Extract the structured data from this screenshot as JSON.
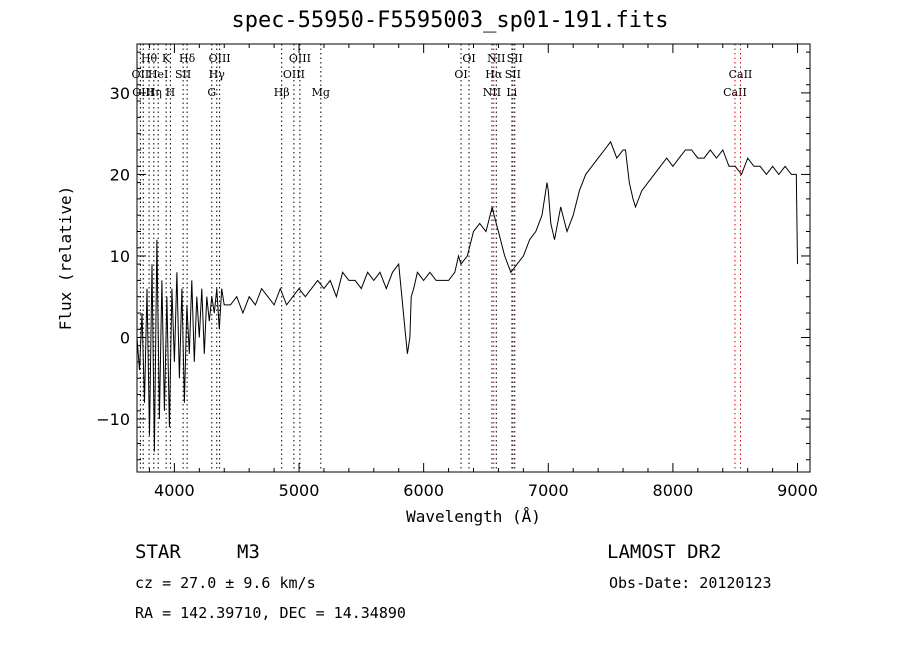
{
  "chart_data": {
    "type": "line",
    "title": "spec-55950-F5595003_sp01-191.fits",
    "xlabel": "Wavelength (Å)",
    "ylabel": "Flux (relative)",
    "xlim": [
      3700,
      9100
    ],
    "ylim": [
      -16.5,
      36
    ],
    "xticks": [
      4000,
      5000,
      6000,
      7000,
      8000,
      9000
    ],
    "yticks": [
      -10,
      0,
      10,
      20,
      30
    ],
    "series": [
      {
        "x": [
          3700,
          3720,
          3740,
          3760,
          3780,
          3800,
          3820,
          3840,
          3860,
          3880,
          3900,
          3920,
          3940,
          3960,
          3980,
          4000,
          4020,
          4040,
          4060,
          4080,
          4100,
          4120,
          4140,
          4160,
          4180,
          4200,
          4220,
          4240,
          4260,
          4280,
          4300,
          4320,
          4340,
          4360,
          4380,
          4400,
          4450,
          4500,
          4550,
          4600,
          4650,
          4700,
          4750,
          4800,
          4850,
          4900,
          4950,
          5000,
          5050,
          5100,
          5150,
          5200,
          5250,
          5300,
          5350,
          5400,
          5450,
          5500,
          5550,
          5600,
          5650,
          5700,
          5750,
          5800,
          5850,
          5870,
          5890,
          5900,
          5920,
          5950,
          6000,
          6050,
          6100,
          6150,
          6200,
          6250,
          6280,
          6300,
          6350,
          6400,
          6450,
          6500,
          6550,
          6565,
          6600,
          6650,
          6700,
          6750,
          6800,
          6850,
          6900,
          6950,
          6990,
          7000,
          7020,
          7050,
          7100,
          7150,
          7200,
          7250,
          7300,
          7350,
          7400,
          7450,
          7500,
          7550,
          7600,
          7620,
          7650,
          7680,
          7700,
          7750,
          7800,
          7850,
          7900,
          7950,
          8000,
          8050,
          8100,
          8150,
          8200,
          8250,
          8300,
          8350,
          8400,
          8450,
          8500,
          8550,
          8600,
          8650,
          8700,
          8750,
          8800,
          8850,
          8900,
          8950,
          8990,
          9000
        ],
        "y": [
          0,
          -4,
          3,
          -8,
          6,
          -12,
          9,
          -14,
          12,
          -10,
          7,
          -9,
          5,
          -11,
          6,
          -3,
          8,
          -5,
          6,
          -8,
          4,
          -2,
          7,
          -3,
          5,
          0,
          6,
          -2,
          5,
          2,
          5,
          3,
          6,
          1,
          6,
          4,
          4,
          5,
          3,
          5,
          4,
          6,
          5,
          4,
          6,
          4,
          5,
          6,
          5,
          6,
          7,
          6,
          7,
          5,
          8,
          7,
          7,
          6,
          8,
          7,
          8,
          6,
          8,
          9,
          1,
          -2,
          0,
          5,
          6,
          8,
          7,
          8,
          7,
          7,
          7,
          8,
          10,
          9,
          10,
          13,
          14,
          13,
          16,
          15,
          13,
          10,
          8,
          9,
          10,
          12,
          13,
          15,
          19,
          18,
          14,
          12,
          16,
          13,
          15,
          18,
          20,
          21,
          22,
          23,
          24,
          22,
          23,
          23,
          19,
          17,
          16,
          18,
          19,
          20,
          21,
          22,
          21,
          22,
          23,
          23,
          22,
          22,
          23,
          22,
          23,
          21,
          21,
          20,
          22,
          21,
          21,
          20,
          21,
          20,
          21,
          20,
          20,
          9
        ]
      }
    ],
    "lines": [
      {
        "x": 3727,
        "labels": [
          "OII"
        ],
        "row": 2,
        "color": "#000000"
      },
      {
        "x": 3750,
        "labels": [
          "OIII"
        ],
        "row": 3,
        "color": "#000000"
      },
      {
        "x": 3797,
        "labels": [
          "Hθ"
        ],
        "row": 1,
        "color": "#000000"
      },
      {
        "x": 3835,
        "labels": [
          "Hη"
        ],
        "row": 3,
        "color": "#000000"
      },
      {
        "x": 3870,
        "labels": [
          "HeI"
        ],
        "row": 2,
        "color": "#000000"
      },
      {
        "x": 3934,
        "labels": [
          "K"
        ],
        "row": 1,
        "color": "#000000"
      },
      {
        "x": 3968,
        "labels": [
          "H"
        ],
        "row": 3,
        "color": "#000000"
      },
      {
        "x": 4070,
        "labels": [
          "SII"
        ],
        "row": 2,
        "color": "#000000"
      },
      {
        "x": 4102,
        "labels": [
          "Hδ"
        ],
        "row": 1,
        "color": "#000000"
      },
      {
        "x": 4300,
        "labels": [
          "G"
        ],
        "row": 3,
        "color": "#000000"
      },
      {
        "x": 4340,
        "labels": [
          "Hγ"
        ],
        "row": 2,
        "color": "#000000"
      },
      {
        "x": 4363,
        "labels": [
          "OIII"
        ],
        "row": 1,
        "color": "#000000"
      },
      {
        "x": 4861,
        "labels": [
          "Hβ"
        ],
        "row": 3,
        "color": "#000000"
      },
      {
        "x": 4959,
        "labels": [
          "OIII"
        ],
        "row": 2,
        "color": "#000000"
      },
      {
        "x": 5007,
        "labels": [
          "OIII"
        ],
        "row": 1,
        "color": "#000000"
      },
      {
        "x": 5175,
        "labels": [
          "Mg"
        ],
        "row": 3,
        "color": "#000000"
      },
      {
        "x": 6300,
        "labels": [
          "OI"
        ],
        "row": 2,
        "color": "#000000"
      },
      {
        "x": 6364,
        "labels": [
          "OI"
        ],
        "row": 1,
        "color": "#000000"
      },
      {
        "x": 6548,
        "labels": [
          "NII"
        ],
        "row": 3,
        "color": "#000000"
      },
      {
        "x": 6563,
        "labels": [
          "Hα"
        ],
        "row": 2,
        "color": "#cc0000"
      },
      {
        "x": 6583,
        "labels": [
          "NII"
        ],
        "row": 1,
        "color": "#000000"
      },
      {
        "x": 6707,
        "labels": [
          "Li"
        ],
        "row": 3,
        "color": "#cc0000"
      },
      {
        "x": 6716,
        "labels": [
          "SII"
        ],
        "row": 2,
        "color": "#000000"
      },
      {
        "x": 6731,
        "labels": [
          "SII"
        ],
        "row": 1,
        "color": "#000000"
      },
      {
        "x": 8498,
        "labels": [
          "CaII"
        ],
        "row": 3,
        "color": "#cc0000"
      },
      {
        "x": 8542,
        "labels": [
          "CaII"
        ],
        "row": 2,
        "color": "#cc0000"
      }
    ]
  },
  "info": {
    "object_class": "STAR",
    "subclass": "M3",
    "survey": "LAMOST DR2",
    "cz": "cz = 27.0 ± 9.6 km/s",
    "obs_date": "Obs-Date: 20120123",
    "coords": "RA = 142.39710, DEC =  14.34890"
  }
}
